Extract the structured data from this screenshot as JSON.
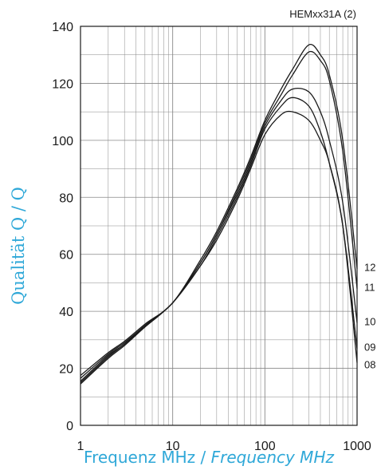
{
  "colors": {
    "axis_label": "#2fa8d8",
    "curve": "#1a1a1a",
    "grid": "#888888"
  },
  "chart_data": {
    "type": "line",
    "code": "HEMxx31A (2)",
    "xlabel": {
      "main": "Frequenz MHz / ",
      "italic": "Frequency MHz"
    },
    "ylabel": "Qualität Q / Q",
    "x_scale": "log",
    "xlim": [
      1,
      1000
    ],
    "ylim": [
      0,
      140
    ],
    "grid": true,
    "x_ticks": [
      1,
      10,
      100,
      1000
    ],
    "y_ticks": [
      0,
      20,
      40,
      60,
      80,
      100,
      120,
      140
    ],
    "x": [
      1,
      2,
      3,
      5,
      10,
      20,
      30,
      50,
      70,
      100,
      150,
      200,
      300,
      400,
      500,
      700,
      1000
    ],
    "series": [
      {
        "name": "12",
        "values": [
          17.5,
          25.5,
          29.5,
          35.5,
          43,
          58,
          68,
          83,
          94,
          107,
          118,
          125,
          133.5,
          130,
          123,
          100,
          55
        ]
      },
      {
        "name": "11",
        "values": [
          16.5,
          25,
          29,
          35,
          43,
          57,
          67,
          82,
          93,
          106,
          116,
          123,
          131,
          128,
          121,
          96,
          48
        ]
      },
      {
        "name": "10",
        "values": [
          15.5,
          24.5,
          28.5,
          35,
          43,
          57,
          67,
          81,
          92,
          105,
          114,
          118,
          117,
          110,
          100,
          78,
          36
        ]
      },
      {
        "name": "09",
        "values": [
          15,
          24,
          28.5,
          34.5,
          43,
          56,
          66,
          80,
          91,
          104,
          112,
          115,
          112,
          103,
          92,
          70,
          27
        ]
      },
      {
        "name": "08",
        "values": [
          14.5,
          23.5,
          28,
          34.5,
          43,
          56,
          65,
          79,
          90,
          102,
          109,
          110,
          107,
          100,
          92,
          70,
          22
        ]
      }
    ]
  }
}
